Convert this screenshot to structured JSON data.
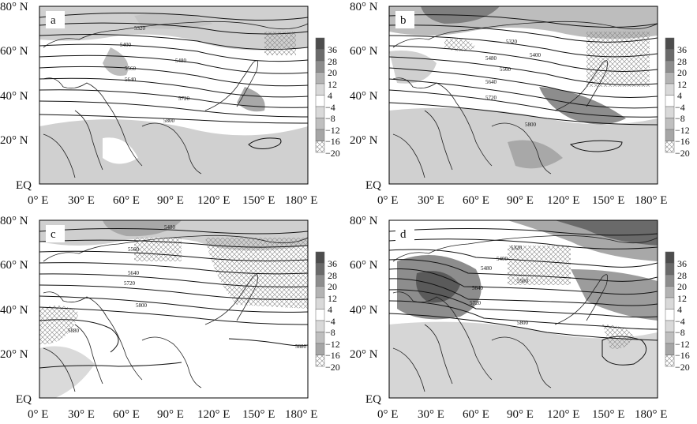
{
  "axes": {
    "y_labels": [
      "80° N",
      "60° N",
      "40° N",
      "20° N",
      "EQ"
    ],
    "x_labels": [
      "0° E",
      "30° E",
      "60° E",
      "90° E",
      "120° E",
      "150° E",
      "180° E"
    ]
  },
  "colorbar": {
    "levels": [
      "36",
      "28",
      "20",
      "12",
      "4",
      "−4",
      "−8",
      "−12",
      "−16",
      "−20"
    ],
    "colors": [
      "#4d4d4d",
      "#6a6a6a",
      "#8d8d8d",
      "#b3b3b3",
      "#d9d9d9",
      "#ffffff",
      "#d9d9d9",
      "#bfbfbf",
      "#a6a6a6",
      "#8c8c8c"
    ]
  },
  "panels": [
    {
      "id": "a",
      "label": "a",
      "contour_labels": [
        "5320",
        "5400",
        "5480",
        "5560",
        "5640",
        "5720",
        "5800"
      ]
    },
    {
      "id": "b",
      "label": "b",
      "contour_labels": [
        "5320",
        "5400",
        "5480",
        "5560",
        "5640",
        "5720",
        "5800"
      ]
    },
    {
      "id": "c",
      "label": "c",
      "contour_labels": [
        "5480",
        "5560",
        "5640",
        "5720",
        "5800",
        "5880",
        "5880"
      ]
    },
    {
      "id": "d",
      "label": "d",
      "contour_labels": [
        "5320",
        "5400",
        "5480",
        "5560",
        "5640",
        "5720",
        "5800"
      ]
    }
  ]
}
